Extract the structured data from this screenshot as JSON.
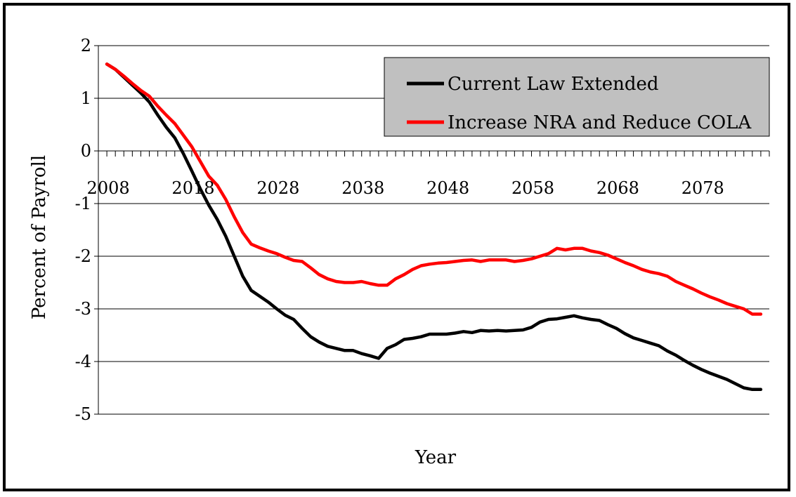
{
  "chart_data": {
    "type": "line",
    "title": "",
    "xlabel": "Year",
    "ylabel": "Percent of Payroll",
    "xlim": [
      2007,
      2086
    ],
    "ylim": [
      -5,
      2
    ],
    "x_ticks": [
      2008,
      2018,
      2028,
      2038,
      2048,
      2058,
      2068,
      2078
    ],
    "y_ticks": [
      2,
      1,
      0,
      -1,
      -2,
      -3,
      -4,
      -5
    ],
    "grid": true,
    "legend_position": "top-right",
    "background": "#ffffff",
    "legend_background": "#c0c0c0",
    "series": [
      {
        "name": "Current Law Extended",
        "color": "#000000",
        "x": [
          2008,
          2009,
          2010,
          2011,
          2012,
          2013,
          2014,
          2015,
          2016,
          2017,
          2018,
          2019,
          2020,
          2021,
          2022,
          2023,
          2024,
          2025,
          2026,
          2027,
          2028,
          2029,
          2030,
          2031,
          2032,
          2033,
          2034,
          2035,
          2036,
          2037,
          2038,
          2039,
          2040,
          2041,
          2042,
          2043,
          2044,
          2045,
          2046,
          2047,
          2048,
          2049,
          2050,
          2051,
          2052,
          2053,
          2054,
          2055,
          2056,
          2057,
          2058,
          2059,
          2060,
          2061,
          2062,
          2063,
          2064,
          2065,
          2066,
          2067,
          2068,
          2069,
          2070,
          2071,
          2072,
          2073,
          2074,
          2075,
          2076,
          2077,
          2078,
          2079,
          2080,
          2081,
          2082,
          2083,
          2084,
          2085
        ],
        "values": [
          1.65,
          1.55,
          1.4,
          1.25,
          1.1,
          0.93,
          0.68,
          0.45,
          0.25,
          -0.05,
          -0.38,
          -0.72,
          -1.03,
          -1.3,
          -1.62,
          -2.0,
          -2.38,
          -2.65,
          -2.76,
          -2.87,
          -3.0,
          -3.12,
          -3.2,
          -3.37,
          -3.53,
          -3.63,
          -3.71,
          -3.75,
          -3.79,
          -3.79,
          -3.85,
          -3.89,
          -3.94,
          -3.75,
          -3.68,
          -3.58,
          -3.56,
          -3.53,
          -3.48,
          -3.48,
          -3.48,
          -3.46,
          -3.43,
          -3.45,
          -3.41,
          -3.42,
          -3.41,
          -3.42,
          -3.41,
          -3.4,
          -3.35,
          -3.25,
          -3.2,
          -3.19,
          -3.16,
          -3.13,
          -3.17,
          -3.2,
          -3.22,
          -3.3,
          -3.37,
          -3.47,
          -3.55,
          -3.6,
          -3.65,
          -3.7,
          -3.8,
          -3.88,
          -3.98,
          -4.07,
          -4.15,
          -4.22,
          -4.28,
          -4.34,
          -4.42,
          -4.5,
          -4.53,
          -4.53
        ]
      },
      {
        "name": "Increase NRA and Reduce COLA",
        "color": "#ff0000",
        "x": [
          2008,
          2009,
          2010,
          2011,
          2012,
          2013,
          2014,
          2015,
          2016,
          2017,
          2018,
          2019,
          2020,
          2021,
          2022,
          2023,
          2024,
          2025,
          2026,
          2027,
          2028,
          2029,
          2030,
          2031,
          2032,
          2033,
          2034,
          2035,
          2036,
          2037,
          2038,
          2039,
          2040,
          2041,
          2042,
          2043,
          2044,
          2045,
          2046,
          2047,
          2048,
          2049,
          2050,
          2051,
          2052,
          2053,
          2054,
          2055,
          2056,
          2057,
          2058,
          2059,
          2060,
          2061,
          2062,
          2063,
          2064,
          2065,
          2066,
          2067,
          2068,
          2069,
          2070,
          2071,
          2072,
          2073,
          2074,
          2075,
          2076,
          2077,
          2078,
          2079,
          2080,
          2081,
          2082,
          2083,
          2084,
          2085
        ],
        "values": [
          1.65,
          1.55,
          1.42,
          1.28,
          1.15,
          1.04,
          0.85,
          0.68,
          0.52,
          0.3,
          0.08,
          -0.2,
          -0.48,
          -0.65,
          -0.92,
          -1.25,
          -1.55,
          -1.77,
          -1.84,
          -1.9,
          -1.95,
          -2.02,
          -2.08,
          -2.1,
          -2.22,
          -2.35,
          -2.43,
          -2.48,
          -2.5,
          -2.5,
          -2.48,
          -2.52,
          -2.55,
          -2.55,
          -2.43,
          -2.35,
          -2.25,
          -2.18,
          -2.15,
          -2.13,
          -2.12,
          -2.1,
          -2.08,
          -2.07,
          -2.1,
          -2.07,
          -2.07,
          -2.07,
          -2.1,
          -2.08,
          -2.05,
          -2.0,
          -1.95,
          -1.85,
          -1.88,
          -1.85,
          -1.85,
          -1.9,
          -1.93,
          -1.98,
          -2.05,
          -2.12,
          -2.18,
          -2.25,
          -2.3,
          -2.33,
          -2.38,
          -2.48,
          -2.55,
          -2.62,
          -2.7,
          -2.77,
          -2.83,
          -2.9,
          -2.95,
          -3.0,
          -3.1,
          -3.1
        ]
      }
    ]
  }
}
